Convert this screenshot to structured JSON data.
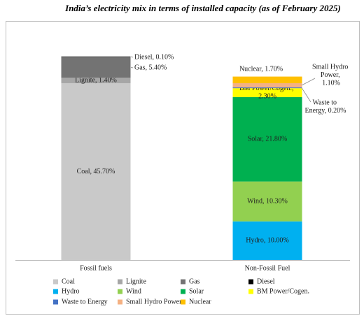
{
  "chart_data": {
    "type": "stacked_bar",
    "title": "India’s electricity mix in terms of installed capacity (as of February 2025)",
    "categories": [
      "Fossil fuels",
      "Non-Fossil Fuel"
    ],
    "series": [
      {
        "name": "Coal",
        "color": "#c9c9c9",
        "values": [
          45.7,
          null
        ],
        "value_labels": [
          "Coal, 45.70%",
          null
        ]
      },
      {
        "name": "Lignite",
        "color": "#a6a6a6",
        "values": [
          1.4,
          null
        ],
        "value_labels": [
          "Lignite, 1.40%",
          null
        ]
      },
      {
        "name": "Gas",
        "color": "#737373",
        "values": [
          5.4,
          null
        ],
        "value_labels": [
          "Gas, 5.40%",
          null
        ]
      },
      {
        "name": "Diesel",
        "color": "#000000",
        "values": [
          0.1,
          null
        ],
        "value_labels": [
          "Diesel, 0.10%",
          null
        ]
      },
      {
        "name": "Hydro",
        "color": "#00b0f0",
        "values": [
          null,
          10.0
        ],
        "value_labels": [
          null,
          "Hydro, 10.00%"
        ]
      },
      {
        "name": "Wind",
        "color": "#92d050",
        "values": [
          null,
          10.3
        ],
        "value_labels": [
          null,
          "Wind, 10.30%"
        ]
      },
      {
        "name": "Solar",
        "color": "#00b050",
        "values": [
          null,
          21.8
        ],
        "value_labels": [
          null,
          "Solar, 21.80%"
        ]
      },
      {
        "name": "BM Power/Cogen.",
        "color": "#ffff00",
        "values": [
          null,
          2.3
        ],
        "value_labels": [
          null,
          "BM Power/Cogen., 2.30%"
        ]
      },
      {
        "name": "Waste to Energy",
        "color": "#4472c4",
        "values": [
          null,
          0.2
        ],
        "value_labels": [
          null,
          "Waste to Energy, 0.20%"
        ]
      },
      {
        "name": "Small Hydro Power",
        "color": "#f4b183",
        "values": [
          null,
          1.1
        ],
        "value_labels": [
          null,
          "Small Hydro Power, 1.10%"
        ]
      },
      {
        "name": "Nuclear",
        "color": "#ffc000",
        "values": [
          null,
          1.7
        ],
        "value_labels": [
          null,
          "Nuclear, 1.70%"
        ]
      }
    ]
  }
}
